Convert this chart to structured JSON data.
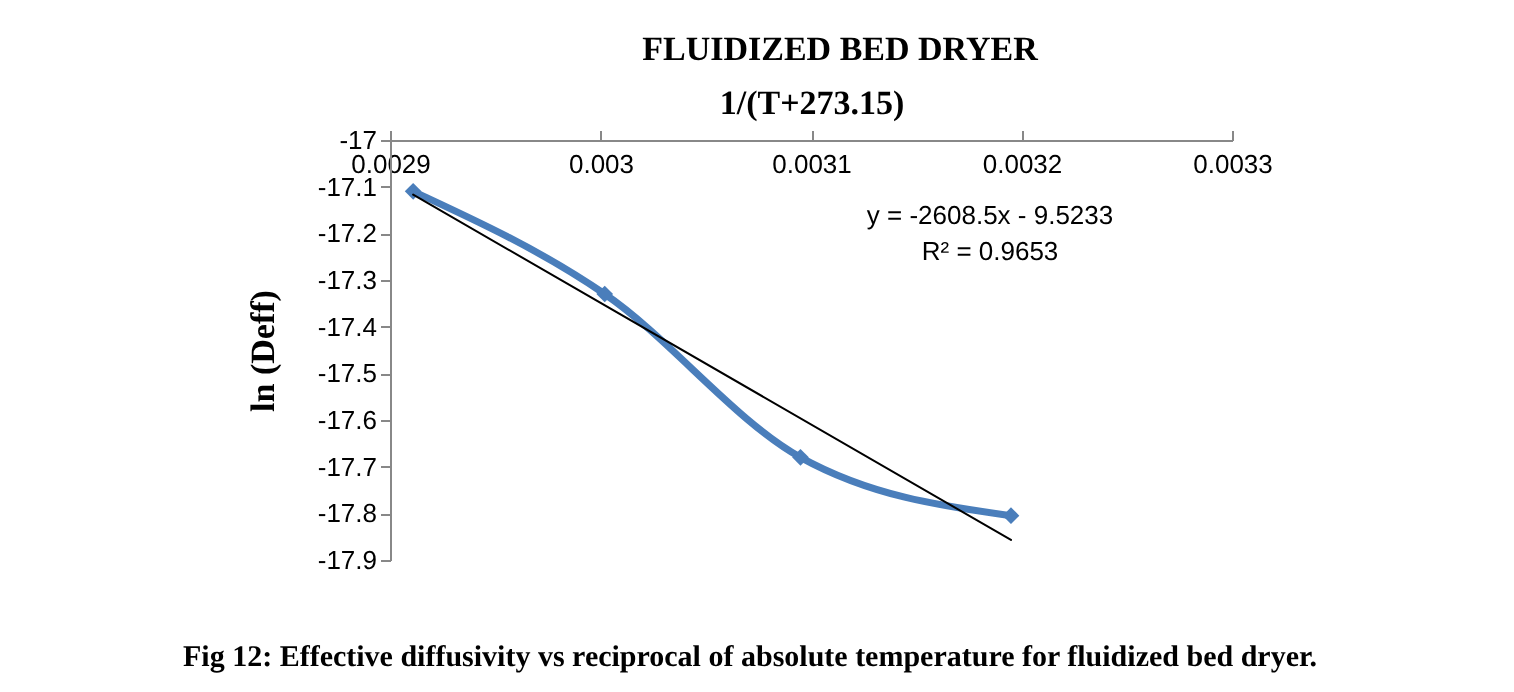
{
  "chart_data": {
    "type": "line",
    "title": "FLUIDIZED BED DRYER",
    "xlabel": "1/(T+273.15)",
    "ylabel": "ln (Deff)",
    "xlim": [
      0.0029,
      0.0033
    ],
    "xticks": [
      0.0029,
      0.003,
      0.0031,
      0.0032,
      0.0033
    ],
    "ylim": [
      -17.9,
      -17
    ],
    "yticks": [
      -17.9,
      -17.8,
      -17.7,
      -17.6,
      -17.5,
      -17.4,
      -17.3,
      -17.2,
      -17.1,
      -17
    ],
    "grid": false,
    "series": [
      {
        "color": "#4a7ebb",
        "marker": "diamond",
        "line_style": "solid",
        "x": [
          0.002911,
          0.003002,
          0.003095,
          0.003195
        ],
        "values": [
          -17.11,
          -17.33,
          -17.68,
          -17.805
        ]
      },
      {
        "type": "line",
        "color": "#000000",
        "marker": "none",
        "line_style": "solid",
        "x": [
          0.002911,
          0.003195
        ],
        "values": [
          -17.117,
          -17.857
        ]
      }
    ],
    "annotations": [
      "y = -2608.5x - 9.5233",
      "R² = 0.9653",
      "Fig 12: Effective diffusivity vs reciprocal of absolute temperature for fluidized bed dryer."
    ]
  }
}
